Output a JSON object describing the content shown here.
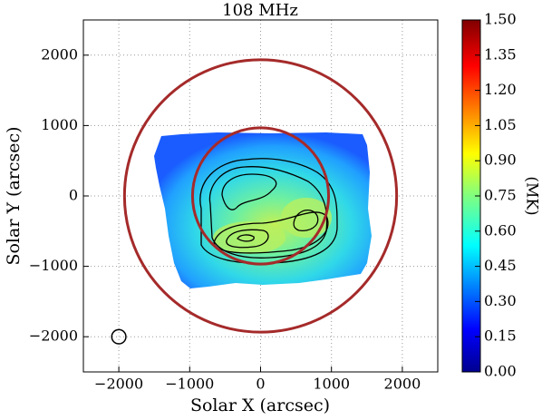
{
  "chart_data": {
    "type": "image",
    "title": "108 MHz",
    "xlabel": "Solar X (arcsec)",
    "ylabel": "Solar Y (arcsec)",
    "xlim": [
      -2500,
      2500
    ],
    "ylim": [
      -2500,
      2500
    ],
    "xticks": [
      {
        "value": -2000,
        "label": "−2000"
      },
      {
        "value": -1000,
        "label": "−1000"
      },
      0,
      1000,
      2000
    ],
    "yticks": [
      {
        "value": -2000,
        "label": "−2000"
      },
      {
        "value": -1000,
        "label": "−1000"
      },
      0,
      1000,
      2000
    ],
    "grid": true,
    "circles": [
      {
        "x": 0,
        "y": 0,
        "r": 960,
        "color": "#a52a2a"
      },
      {
        "x": 0,
        "y": 0,
        "r": 1920,
        "color": "#a52a2a"
      },
      {
        "x": -2000,
        "y": -2000,
        "r": 100,
        "color": "#000000"
      }
    ],
    "colorbar": {
      "label": "(MK)",
      "lim": [
        0,
        1.5
      ],
      "ticks": [
        {
          "value": 0,
          "label": "0.00"
        },
        {
          "value": 0.15,
          "label": "0.15"
        },
        {
          "value": 0.3,
          "label": "0.30"
        },
        {
          "value": 0.45,
          "label": "0.45"
        },
        {
          "value": 0.6,
          "label": "0.60"
        },
        {
          "value": 0.75,
          "label": "0.75"
        },
        {
          "value": 0.9,
          "label": "0.90"
        },
        {
          "value": 1.05,
          "label": "1.05"
        },
        {
          "value": 1.2,
          "label": "1.20"
        },
        {
          "value": 1.35,
          "label": "1.35"
        },
        {
          "value": 1.5,
          "label": "1.50"
        }
      ]
    }
  }
}
